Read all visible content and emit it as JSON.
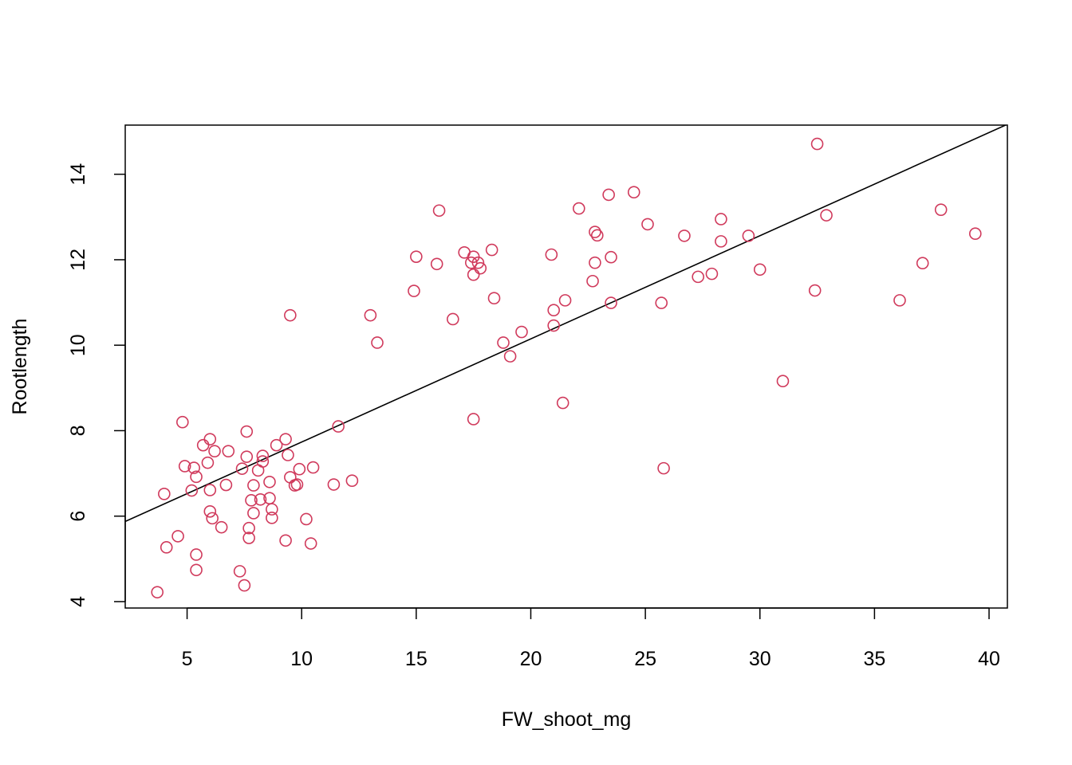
{
  "chart_data": {
    "type": "scatter",
    "title": "",
    "xlabel": "FW_shoot_mg",
    "ylabel": "Rootlength",
    "xlim": [
      2.3,
      40.8
    ],
    "ylim": [
      3.85,
      15.15
    ],
    "x_ticks": [
      5,
      10,
      15,
      20,
      25,
      30,
      35,
      40
    ],
    "y_ticks": [
      4,
      6,
      8,
      10,
      12,
      14
    ],
    "grid": false,
    "legend": "none",
    "point_color": "#D03A5C",
    "line_color": "#000000",
    "regression_line": {
      "intercept": 5.32,
      "slope": 0.2414
    },
    "points": [
      [
        3.7,
        4.22
      ],
      [
        4.0,
        6.52
      ],
      [
        4.1,
        5.27
      ],
      [
        4.6,
        5.53
      ],
      [
        4.8,
        8.2
      ],
      [
        4.9,
        7.17
      ],
      [
        5.2,
        6.6
      ],
      [
        5.3,
        7.13
      ],
      [
        5.4,
        5.1
      ],
      [
        5.4,
        4.74
      ],
      [
        5.4,
        6.92
      ],
      [
        5.7,
        7.66
      ],
      [
        5.9,
        7.25
      ],
      [
        6.0,
        7.8
      ],
      [
        6.0,
        6.61
      ],
      [
        6.0,
        6.11
      ],
      [
        6.1,
        5.95
      ],
      [
        6.2,
        7.52
      ],
      [
        6.5,
        5.74
      ],
      [
        6.7,
        6.73
      ],
      [
        6.8,
        7.52
      ],
      [
        7.3,
        4.71
      ],
      [
        7.4,
        7.11
      ],
      [
        7.5,
        4.38
      ],
      [
        7.6,
        7.39
      ],
      [
        7.6,
        7.98
      ],
      [
        7.7,
        5.72
      ],
      [
        7.7,
        5.49
      ],
      [
        7.8,
        6.37
      ],
      [
        7.9,
        6.72
      ],
      [
        7.9,
        6.07
      ],
      [
        8.1,
        7.07
      ],
      [
        8.2,
        6.39
      ],
      [
        8.3,
        7.41
      ],
      [
        8.3,
        7.28
      ],
      [
        8.6,
        6.8
      ],
      [
        8.6,
        6.42
      ],
      [
        8.7,
        6.16
      ],
      [
        8.7,
        5.96
      ],
      [
        8.9,
        7.66
      ],
      [
        9.3,
        7.8
      ],
      [
        9.3,
        5.43
      ],
      [
        9.4,
        7.43
      ],
      [
        9.5,
        6.91
      ],
      [
        9.5,
        10.7
      ],
      [
        9.7,
        6.72
      ],
      [
        9.8,
        6.74
      ],
      [
        9.9,
        7.1
      ],
      [
        10.2,
        5.93
      ],
      [
        10.4,
        5.36
      ],
      [
        10.5,
        7.14
      ],
      [
        11.4,
        6.74
      ],
      [
        11.6,
        8.1
      ],
      [
        12.2,
        6.83
      ],
      [
        13.0,
        10.7
      ],
      [
        13.3,
        10.06
      ],
      [
        14.9,
        11.27
      ],
      [
        15.0,
        12.07
      ],
      [
        15.9,
        11.9
      ],
      [
        16.0,
        13.15
      ],
      [
        16.6,
        10.61
      ],
      [
        17.1,
        12.17
      ],
      [
        17.4,
        11.93
      ],
      [
        17.5,
        12.07
      ],
      [
        17.5,
        11.65
      ],
      [
        17.5,
        8.27
      ],
      [
        17.7,
        11.93
      ],
      [
        17.8,
        11.8
      ],
      [
        18.3,
        12.23
      ],
      [
        18.4,
        11.1
      ],
      [
        18.8,
        10.06
      ],
      [
        19.1,
        9.74
      ],
      [
        19.6,
        10.31
      ],
      [
        20.9,
        12.12
      ],
      [
        21.0,
        10.82
      ],
      [
        21.0,
        10.46
      ],
      [
        21.4,
        8.65
      ],
      [
        21.5,
        11.05
      ],
      [
        22.1,
        13.2
      ],
      [
        22.7,
        11.5
      ],
      [
        22.8,
        12.65
      ],
      [
        22.8,
        11.93
      ],
      [
        22.9,
        12.57
      ],
      [
        23.4,
        13.52
      ],
      [
        23.5,
        12.06
      ],
      [
        23.5,
        10.99
      ],
      [
        24.5,
        13.58
      ],
      [
        25.1,
        12.83
      ],
      [
        25.7,
        10.99
      ],
      [
        25.8,
        7.12
      ],
      [
        26.7,
        12.56
      ],
      [
        27.3,
        11.6
      ],
      [
        27.9,
        11.67
      ],
      [
        28.3,
        12.95
      ],
      [
        28.3,
        12.43
      ],
      [
        29.5,
        12.56
      ],
      [
        30.0,
        11.77
      ],
      [
        31.0,
        9.16
      ],
      [
        32.4,
        11.28
      ],
      [
        32.5,
        14.71
      ],
      [
        32.9,
        13.04
      ],
      [
        36.1,
        11.05
      ],
      [
        37.1,
        11.92
      ],
      [
        37.9,
        13.17
      ],
      [
        39.4,
        12.61
      ]
    ]
  }
}
